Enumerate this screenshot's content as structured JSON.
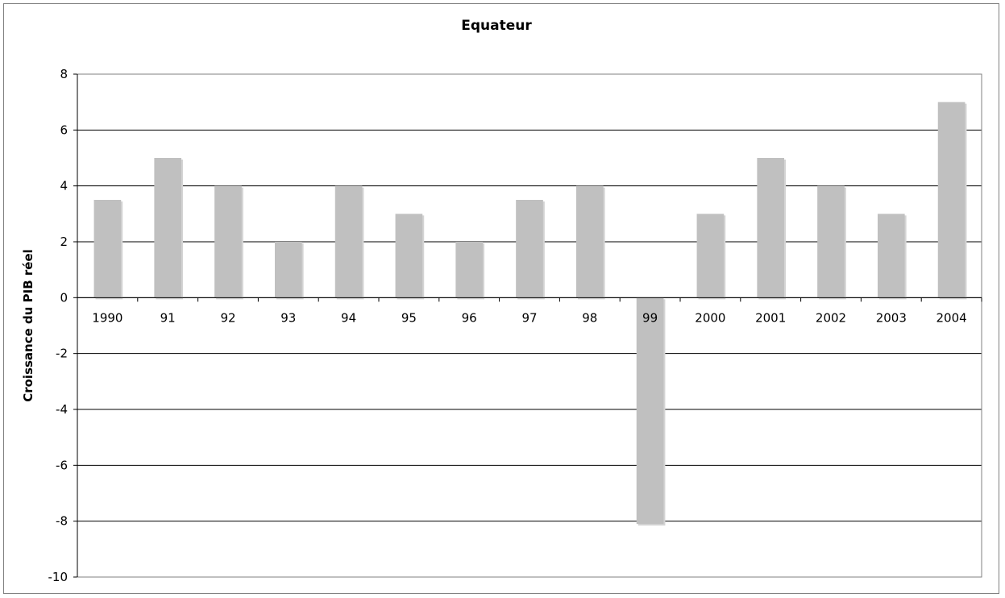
{
  "chart_data": {
    "type": "bar",
    "title": "Equateur",
    "xlabel": "",
    "ylabel": "Croissance du PIB réel",
    "categories": [
      "1990",
      "91",
      "92",
      "93",
      "94",
      "95",
      "96",
      "97",
      "98",
      "99",
      "2000",
      "2001",
      "2002",
      "2003",
      "2004"
    ],
    "values": [
      3.5,
      5,
      4,
      2,
      4,
      3,
      2,
      3.5,
      4,
      -8.1,
      3,
      5,
      4,
      3,
      7
    ],
    "ylim": [
      -10,
      8
    ],
    "yticks": [
      "8",
      "6",
      "4",
      "2",
      "0",
      "-2",
      "-4",
      "-6",
      "-8",
      "-10"
    ],
    "ytick_values": [
      8,
      6,
      4,
      2,
      0,
      -2,
      -4,
      -6,
      -8,
      -10
    ],
    "grid": true,
    "legend": "none",
    "bar_color": "#c0c0c0",
    "grid_color": "#000000"
  }
}
